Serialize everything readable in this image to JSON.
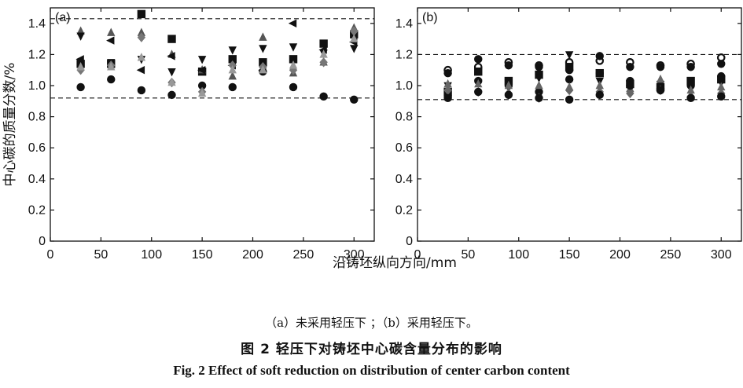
{
  "chart_data": [
    {
      "type": "scatter",
      "panel_label": "(a)",
      "ylabel": "中心碳的质量分数/%",
      "xlim": [
        0,
        320
      ],
      "ylim": [
        0,
        1.5
      ],
      "x_ticks": [
        "0",
        "50",
        "100",
        "150",
        "200",
        "250",
        "300"
      ],
      "y_ticks": [
        "0",
        "0.2",
        "0.4",
        "0.6",
        "0.8",
        "1.0",
        "1.2",
        "1.4"
      ],
      "reference_lines": [
        1.43,
        0.92
      ],
      "grid": false,
      "series": [
        {
          "marker": "circle",
          "color": "#111111",
          "points": [
            [
              30,
              0.99
            ],
            [
              60,
              1.04
            ],
            [
              90,
              0.97
            ],
            [
              120,
              0.94
            ],
            [
              150,
              1.0
            ],
            [
              180,
              0.99
            ],
            [
              210,
              1.09
            ],
            [
              240,
              0.99
            ],
            [
              270,
              0.93
            ],
            [
              300,
              0.91
            ]
          ]
        },
        {
          "marker": "square",
          "color": "#111111",
          "points": [
            [
              30,
              1.14
            ],
            [
              60,
              1.14
            ],
            [
              90,
              1.46
            ],
            [
              120,
              1.3
            ],
            [
              150,
              1.09
            ],
            [
              180,
              1.17
            ],
            [
              210,
              1.15
            ],
            [
              240,
              1.17
            ],
            [
              270,
              1.27
            ],
            [
              300,
              1.33
            ]
          ]
        },
        {
          "marker": "triangle-up",
          "color": "#555555",
          "points": [
            [
              30,
              1.35
            ],
            [
              60,
              1.34
            ],
            [
              90,
              1.34
            ],
            [
              120,
              1.2
            ],
            [
              150,
              1.1
            ],
            [
              180,
              1.06
            ],
            [
              210,
              1.31
            ],
            [
              240,
              1.08
            ],
            [
              270,
              1.15
            ],
            [
              300,
              1.37
            ]
          ]
        },
        {
          "marker": "triangle-down",
          "color": "#111111",
          "points": [
            [
              30,
              1.32
            ],
            [
              60,
              1.15
            ],
            [
              90,
              1.17
            ],
            [
              120,
              1.09
            ],
            [
              150,
              1.17
            ],
            [
              180,
              1.23
            ],
            [
              210,
              1.24
            ],
            [
              240,
              1.25
            ],
            [
              270,
              1.21
            ],
            [
              300,
              1.24
            ]
          ]
        },
        {
          "marker": "triangle-left",
          "color": "#111111",
          "points": [
            [
              30,
              1.17
            ],
            [
              60,
              1.29
            ],
            [
              90,
              1.1
            ],
            [
              120,
              1.19
            ],
            [
              150,
              1.1
            ],
            [
              180,
              1.13
            ],
            [
              210,
              1.1
            ],
            [
              240,
              1.4
            ],
            [
              270,
              1.23
            ],
            [
              300,
              1.28
            ]
          ]
        },
        {
          "marker": "diamond",
          "color": "#777777",
          "points": [
            [
              30,
              1.1
            ],
            [
              60,
              1.13
            ],
            [
              90,
              1.31
            ],
            [
              120,
              1.02
            ],
            [
              150,
              0.96
            ],
            [
              180,
              1.13
            ],
            [
              210,
              1.12
            ],
            [
              240,
              1.1
            ],
            [
              270,
              1.15
            ],
            [
              300,
              1.35
            ]
          ]
        },
        {
          "marker": "triangle-up",
          "color": "#999999",
          "points": [
            [
              30,
              1.12
            ],
            [
              60,
              1.12
            ],
            [
              90,
              1.18
            ],
            [
              120,
              1.02
            ],
            [
              150,
              0.95
            ],
            [
              180,
              1.1
            ],
            [
              210,
              1.1
            ],
            [
              240,
              1.13
            ],
            [
              270,
              1.2
            ],
            [
              300,
              1.3
            ]
          ]
        }
      ]
    },
    {
      "type": "scatter",
      "panel_label": "(b)",
      "xlim": [
        0,
        320
      ],
      "ylim": [
        0,
        1.5
      ],
      "x_ticks": [
        "0",
        "50",
        "100",
        "150",
        "200",
        "250",
        "300"
      ],
      "y_ticks": [
        "0",
        "0.2",
        "0.4",
        "0.6",
        "0.8",
        "1.0",
        "1.2",
        "1.4"
      ],
      "reference_lines": [
        1.2,
        0.91
      ],
      "grid": false,
      "series": [
        {
          "marker": "ring",
          "color": "#111111",
          "points": [
            [
              30,
              1.1
            ],
            [
              60,
              1.12
            ],
            [
              90,
              1.15
            ],
            [
              120,
              1.13
            ],
            [
              150,
              1.15
            ],
            [
              180,
              1.16
            ],
            [
              210,
              1.15
            ],
            [
              240,
              1.13
            ],
            [
              270,
              1.14
            ],
            [
              300,
              1.18
            ]
          ]
        },
        {
          "marker": "circle",
          "color": "#111111",
          "points": [
            [
              30,
              1.08
            ],
            [
              60,
              1.17
            ],
            [
              90,
              1.13
            ],
            [
              120,
              1.12
            ],
            [
              150,
              1.1
            ],
            [
              180,
              1.19
            ],
            [
              210,
              1.12
            ],
            [
              240,
              1.12
            ],
            [
              270,
              1.12
            ],
            [
              300,
              1.14
            ]
          ]
        },
        {
          "marker": "circle",
          "color": "#111111",
          "points": [
            [
              30,
              0.93
            ],
            [
              60,
              1.03
            ],
            [
              90,
              1.0
            ],
            [
              120,
              0.96
            ],
            [
              150,
              1.04
            ],
            [
              180,
              1.08
            ],
            [
              210,
              1.03
            ],
            [
              240,
              0.98
            ],
            [
              270,
              1.0
            ],
            [
              300,
              1.06
            ]
          ]
        },
        {
          "marker": "square",
          "color": "#111111",
          "points": [
            [
              30,
              0.96
            ],
            [
              60,
              1.09
            ],
            [
              90,
              1.03
            ],
            [
              120,
              1.07
            ],
            [
              150,
              1.12
            ],
            [
              180,
              1.08
            ],
            [
              210,
              1.01
            ],
            [
              240,
              0.99
            ],
            [
              270,
              1.03
            ],
            [
              300,
              1.04
            ]
          ]
        },
        {
          "marker": "triangle-down",
          "color": "#111111",
          "points": [
            [
              30,
              1.0
            ],
            [
              60,
              1.02
            ],
            [
              90,
              1.02
            ],
            [
              120,
              1.05
            ],
            [
              150,
              1.2
            ],
            [
              180,
              1.03
            ],
            [
              210,
              0.99
            ],
            [
              240,
              1.01
            ],
            [
              270,
              0.98
            ],
            [
              300,
              1.02
            ]
          ]
        },
        {
          "marker": "triangle-up",
          "color": "#666666",
          "points": [
            [
              30,
              1.01
            ],
            [
              60,
              1.01
            ],
            [
              90,
              1.0
            ],
            [
              120,
              1.0
            ],
            [
              150,
              0.99
            ],
            [
              180,
              1.0
            ],
            [
              210,
              0.98
            ],
            [
              240,
              1.04
            ],
            [
              270,
              0.97
            ],
            [
              300,
              0.99
            ]
          ]
        },
        {
          "marker": "diamond",
          "color": "#666666",
          "points": [
            [
              30,
              0.97
            ],
            [
              60,
              0.96
            ],
            [
              90,
              0.95
            ],
            [
              120,
              0.92
            ],
            [
              150,
              0.97
            ],
            [
              180,
              0.96
            ],
            [
              210,
              0.95
            ],
            [
              240,
              0.97
            ],
            [
              270,
              0.93
            ],
            [
              300,
              0.95
            ]
          ]
        },
        {
          "marker": "circle",
          "color": "#111111",
          "points": [
            [
              30,
              0.92
            ],
            [
              60,
              0.96
            ],
            [
              90,
              0.94
            ],
            [
              120,
              0.92
            ],
            [
              150,
              0.91
            ],
            [
              180,
              0.94
            ],
            [
              210,
              1.0
            ],
            [
              240,
              0.97
            ],
            [
              270,
              0.92
            ],
            [
              300,
              0.93
            ]
          ]
        }
      ]
    }
  ],
  "shared": {
    "xlabel": "沿铸坯纵向方向/mm"
  },
  "captions": {
    "sub": "（a）未采用轻压下 ；（b）采用轻压下。",
    "cn_title": "图 2    轻压下对铸坯中心碳含量分布的影响",
    "en_title": "Fig. 2    Effect of soft reduction on distribution of center carbon content"
  }
}
